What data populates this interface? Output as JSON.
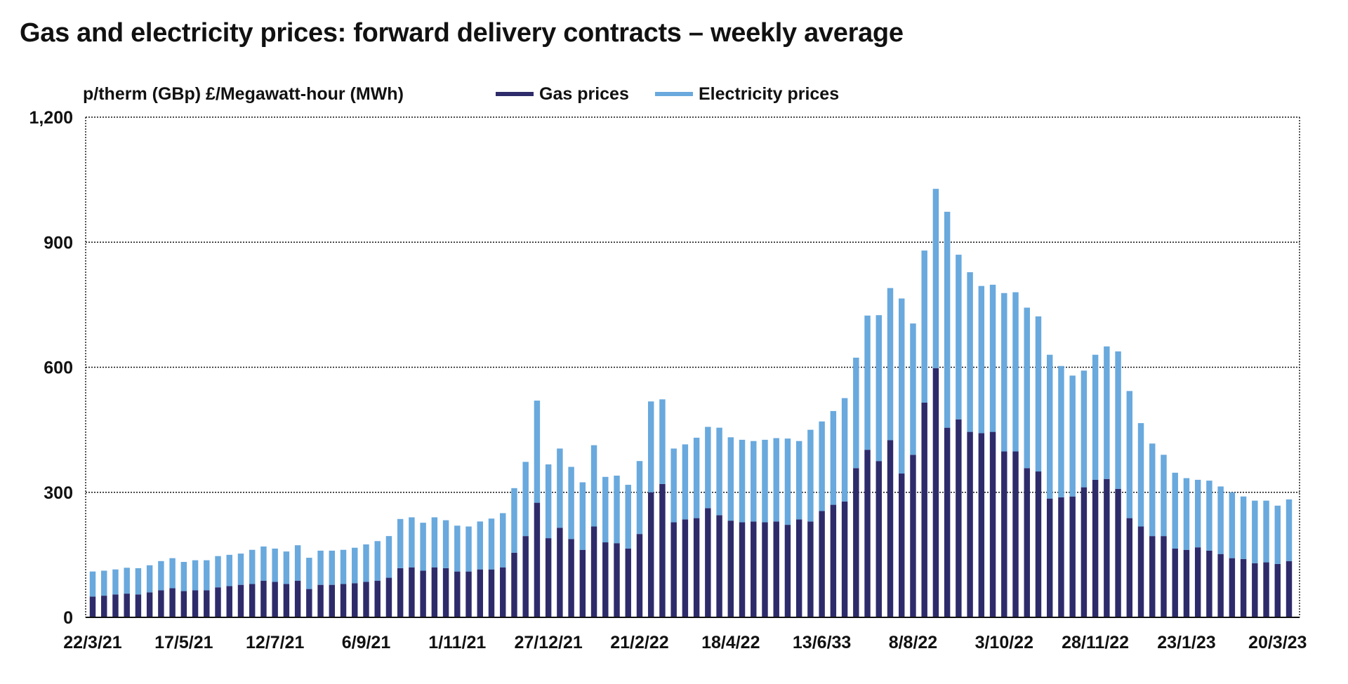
{
  "chart_data": {
    "type": "bar",
    "stacked": true,
    "title": "Gas and electricity prices: forward delivery contracts – weekly average",
    "ylabel": "p/therm (GBp) £/Megawatt-hour (MWh)",
    "xlabel": "",
    "ylim": [
      0,
      1200
    ],
    "yticks": [
      "0",
      "300",
      "600",
      "900",
      "1,200"
    ],
    "ytick_values": [
      0,
      300,
      600,
      900,
      1200
    ],
    "grid": true,
    "legend_position": "top",
    "xtick_labels": [
      "22/3/21",
      "17/5/21",
      "12/7/21",
      "6/9/21",
      "1/11/21",
      "27/12/21",
      "21/2/22",
      "18/4/22",
      "13/6/33",
      "8/8/22",
      "3/10/22",
      "28/11/22",
      "23/1/23",
      "20/3/23"
    ],
    "xtick_every": 8,
    "series": [
      {
        "name": "Gas prices",
        "color": "#2e2b6b",
        "values": [
          50,
          52,
          55,
          57,
          55,
          60,
          65,
          70,
          63,
          65,
          65,
          72,
          75,
          78,
          80,
          88,
          85,
          80,
          88,
          68,
          78,
          78,
          80,
          82,
          85,
          88,
          95,
          118,
          120,
          112,
          120,
          118,
          110,
          110,
          115,
          115,
          120,
          155,
          195,
          275,
          190,
          215,
          188,
          162,
          218,
          180,
          178,
          165,
          200,
          300,
          320,
          228,
          235,
          238,
          262,
          245,
          232,
          228,
          230,
          228,
          230,
          222,
          235,
          230,
          255,
          270,
          278,
          358,
          402,
          375,
          425,
          345,
          390,
          515,
          598,
          455,
          475,
          445,
          442,
          445,
          398,
          398,
          358,
          350,
          285,
          288,
          290,
          312,
          330,
          332,
          308,
          238,
          218,
          195,
          195,
          165,
          162,
          168,
          160,
          152,
          142,
          140,
          130,
          132,
          128,
          135
        ]
      },
      {
        "name": "Electricity prices",
        "color": "#69a9dd",
        "values": [
          60,
          60,
          60,
          62,
          63,
          65,
          70,
          72,
          70,
          72,
          72,
          75,
          75,
          75,
          82,
          82,
          80,
          78,
          85,
          75,
          82,
          82,
          82,
          85,
          90,
          95,
          100,
          118,
          120,
          115,
          120,
          115,
          110,
          108,
          115,
          122,
          130,
          155,
          178,
          245,
          177,
          190,
          173,
          162,
          195,
          157,
          162,
          153,
          175,
          218,
          203,
          177,
          180,
          193,
          195,
          210,
          200,
          198,
          193,
          198,
          200,
          207,
          188,
          220,
          215,
          225,
          248,
          265,
          322,
          350,
          365,
          420,
          315,
          365,
          430,
          518,
          395,
          383,
          353,
          353,
          380,
          382,
          385,
          372,
          345,
          315,
          290,
          280,
          300,
          318,
          330,
          305,
          248,
          222,
          195,
          182,
          172,
          162,
          168,
          162,
          158,
          150,
          150,
          148,
          140,
          148
        ]
      }
    ]
  }
}
